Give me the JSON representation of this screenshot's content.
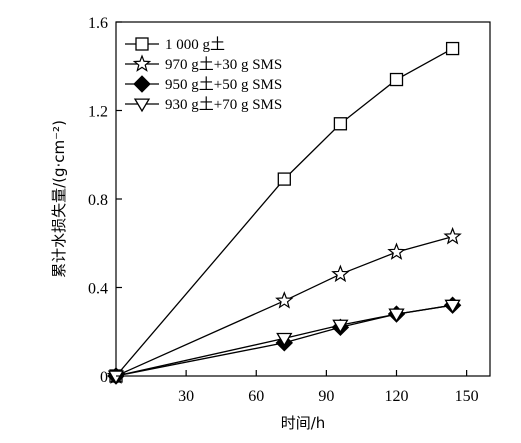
{
  "chart_data": {
    "type": "line",
    "xlabel": "时间/h",
    "ylabel": "累计水损失量/(g·cm⁻²)",
    "xlim": [
      0,
      160
    ],
    "ylim": [
      0,
      1.6
    ],
    "x_ticks": [
      30,
      60,
      90,
      120,
      150
    ],
    "x_tick_labels": [
      "30",
      "60",
      "90",
      "120",
      "150"
    ],
    "y_ticks": [
      0,
      0.4,
      0.8,
      1.2,
      1.6
    ],
    "y_tick_labels": [
      "0",
      "0.4",
      "0.8",
      "1.2",
      "1.6"
    ],
    "grid": false,
    "legend_position": "top-left",
    "series": [
      {
        "name": "1 000 g土",
        "marker": "square-open",
        "x": [
          0,
          72,
          96,
          120,
          144
        ],
        "y": [
          0,
          0.89,
          1.14,
          1.34,
          1.48
        ]
      },
      {
        "name": "970 g土+30 g SMS",
        "marker": "star-open",
        "x": [
          0,
          72,
          96,
          120,
          144
        ],
        "y": [
          0,
          0.34,
          0.46,
          0.56,
          0.63
        ]
      },
      {
        "name": "950 g土+50 g SMS",
        "marker": "diamond-filled",
        "x": [
          0,
          72,
          96,
          120,
          144
        ],
        "y": [
          0,
          0.15,
          0.22,
          0.28,
          0.32
        ]
      },
      {
        "name": "930 g土+70 g SMS",
        "marker": "triangle-down-open",
        "x": [
          0,
          72,
          96,
          120,
          144
        ],
        "y": [
          0,
          0.17,
          0.23,
          0.28,
          0.32
        ]
      }
    ]
  }
}
